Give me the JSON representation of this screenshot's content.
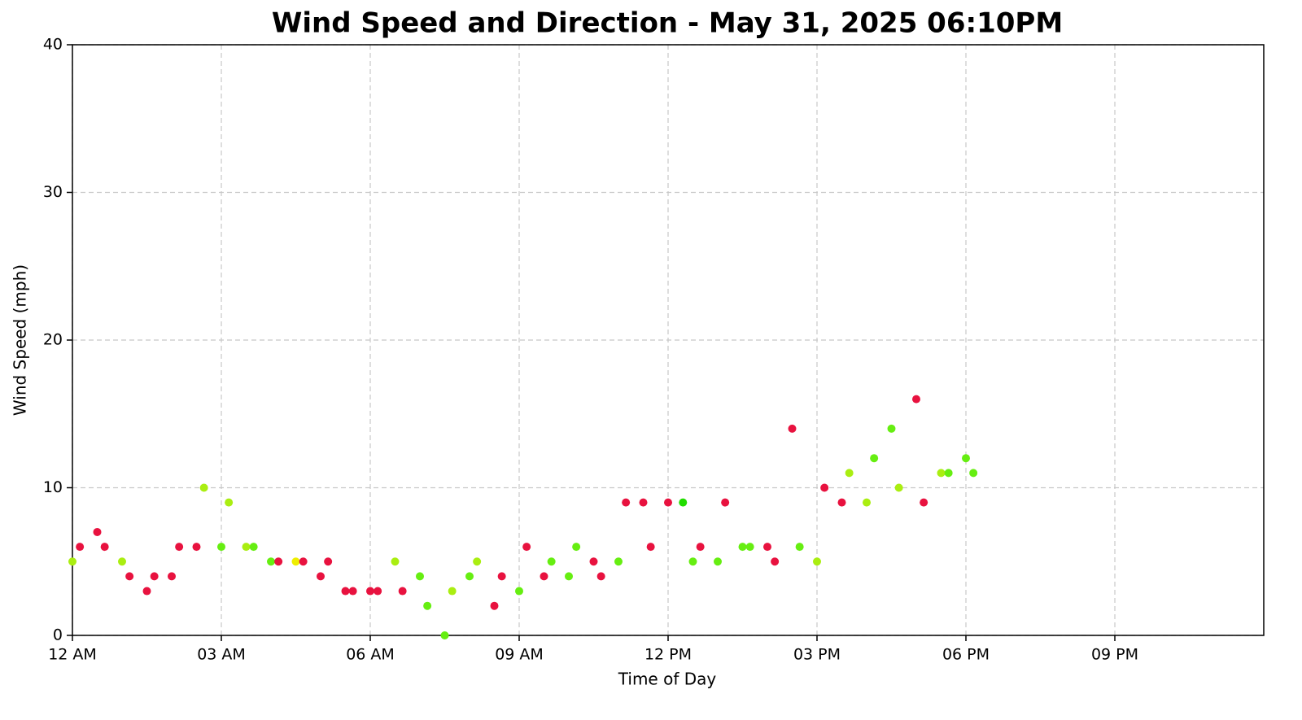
{
  "chart_data": {
    "type": "scatter",
    "title": "Wind Speed and Direction - May 31, 2025 06:10PM",
    "x_label": "Time of Day",
    "y_label": "Wind Speed (mph)",
    "x": [
      0,
      0.15,
      0.5,
      0.65,
      1.0,
      1.15,
      1.5,
      1.65,
      2.0,
      2.15,
      2.5,
      2.65,
      3.0,
      3.15,
      3.5,
      3.65,
      4.0,
      4.15,
      4.5,
      4.65,
      5.0,
      5.15,
      5.5,
      5.65,
      6.0,
      6.15,
      6.5,
      6.65,
      7.0,
      7.15,
      7.5,
      7.65,
      8.0,
      8.15,
      8.5,
      8.65,
      9.0,
      9.15,
      9.5,
      9.65,
      10.0,
      10.15,
      10.5,
      10.65,
      11.0,
      11.15,
      11.5,
      11.65,
      12.0,
      12.3,
      12.5,
      12.65,
      13.0,
      13.15,
      13.5,
      13.65,
      14.0,
      14.15,
      14.5,
      14.65,
      15.0,
      15.15,
      15.5,
      15.65,
      16.0,
      16.15,
      16.5,
      16.65,
      17.0,
      17.15,
      17.5,
      17.65,
      18.0,
      18.15
    ],
    "values": [
      5,
      6,
      7,
      6,
      5,
      4,
      3,
      4,
      4,
      6,
      6,
      10,
      6,
      9,
      6,
      6,
      5,
      5,
      5,
      5,
      4,
      5,
      3,
      3,
      3,
      3,
      5,
      3,
      4,
      2,
      0,
      3,
      4,
      5,
      2,
      4,
      3,
      6,
      4,
      5,
      4,
      6,
      5,
      4,
      5,
      9,
      9,
      6,
      9,
      9,
      5,
      6,
      5,
      9,
      6,
      6,
      6,
      5,
      14,
      6,
      5,
      10,
      9,
      11,
      9,
      12,
      14,
      10,
      16,
      9,
      11,
      11,
      12,
      11
    ],
    "colors": [
      "#aaee11",
      "#e8123f",
      "#e8123f",
      "#e8123f",
      "#aaee11",
      "#e8123f",
      "#e8123f",
      "#e8123f",
      "#e8123f",
      "#e8123f",
      "#e8123f",
      "#aaee11",
      "#66ee11",
      "#aaee11",
      "#aaee11",
      "#66ee11",
      "#66ee11",
      "#e8123f",
      "#eeee00",
      "#e8123f",
      "#e8123f",
      "#e8123f",
      "#e8123f",
      "#e8123f",
      "#e8123f",
      "#e8123f",
      "#aaee11",
      "#e8123f",
      "#66ee11",
      "#66ee11",
      "#66ee11",
      "#aaee11",
      "#66ee11",
      "#aaee11",
      "#e8123f",
      "#e8123f",
      "#66ee11",
      "#e8123f",
      "#e8123f",
      "#66ee11",
      "#66ee11",
      "#66ee11",
      "#e8123f",
      "#e8123f",
      "#66ee11",
      "#e8123f",
      "#e8123f",
      "#e8123f",
      "#e8123f",
      "#22dd00",
      "#66ee11",
      "#e8123f",
      "#66ee11",
      "#e8123f",
      "#66ee11",
      "#66ee11",
      "#e8123f",
      "#e8123f",
      "#e8123f",
      "#66ee11",
      "#aaee11",
      "#e8123f",
      "#e8123f",
      "#aaee11",
      "#aaee11",
      "#66ee11",
      "#66ee11",
      "#aaee11",
      "#e8123f",
      "#e8123f",
      "#aaee11",
      "#66ee11",
      "#66ee11",
      "#66ee11"
    ],
    "xlim": [
      0,
      24
    ],
    "xticks": [
      {
        "value": 0,
        "label": "12 AM"
      },
      {
        "value": 3,
        "label": "03 AM"
      },
      {
        "value": 6,
        "label": "06 AM"
      },
      {
        "value": 9,
        "label": "09 AM"
      },
      {
        "value": 12,
        "label": "12 PM"
      },
      {
        "value": 15,
        "label": "03 PM"
      },
      {
        "value": 18,
        "label": "06 PM"
      },
      {
        "value": 21,
        "label": "09 PM"
      }
    ],
    "ylim": [
      0,
      40
    ],
    "yticks": [
      0,
      10,
      20,
      30,
      40
    ],
    "grid": true
  }
}
